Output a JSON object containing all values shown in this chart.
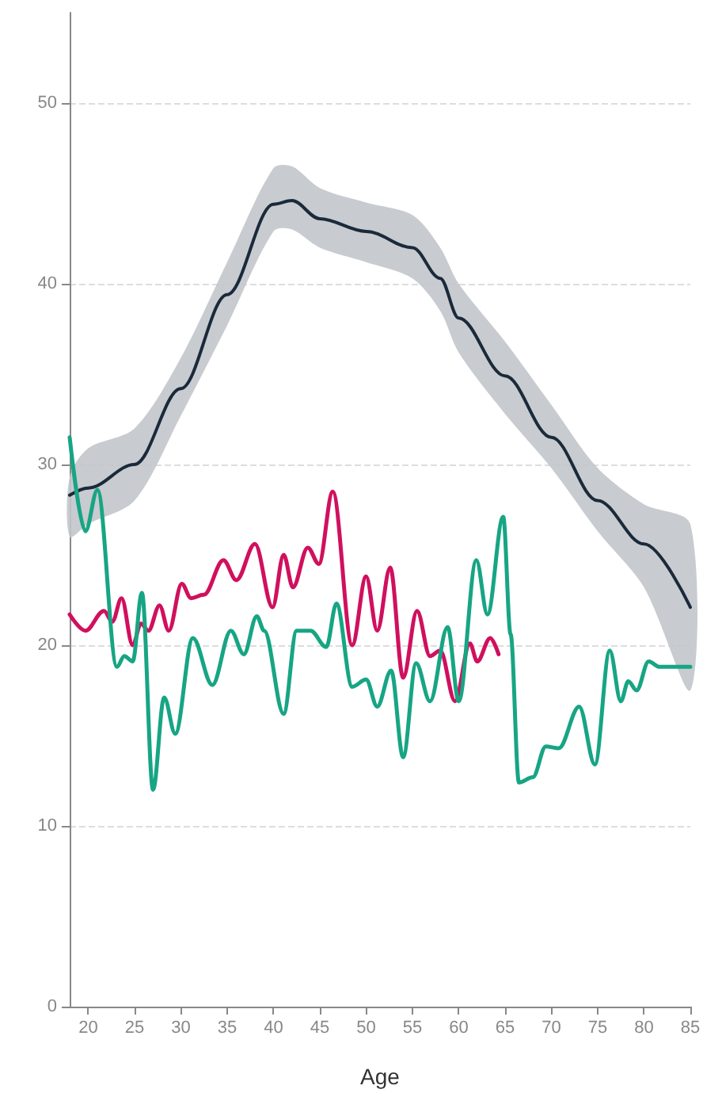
{
  "chart_data": {
    "type": "line",
    "xlabel": "Age",
    "xlim": [
      18,
      85
    ],
    "xticks": [
      20,
      25,
      30,
      35,
      40,
      45,
      50,
      55,
      60,
      65,
      70,
      75,
      80,
      85
    ],
    "ylim": [
      0,
      55
    ],
    "yticks": [
      0,
      10,
      20,
      30,
      40,
      50
    ],
    "grid": "y",
    "marker": "none",
    "line_style": "solid",
    "series": [
      {
        "color": "#1b2a3a",
        "x": [
          18,
          20,
          25,
          30,
          35,
          40,
          42,
          45,
          50,
          55,
          58,
          60,
          65,
          70,
          75,
          80,
          85
        ],
        "values": [
          28.3,
          28.7,
          30.0,
          34.2,
          39.4,
          44.4,
          44.6,
          43.6,
          42.9,
          42.0,
          40.3,
          38.1,
          34.9,
          31.5,
          28.0,
          25.6,
          22.1
        ],
        "lower": [
          26.0,
          26.7,
          28.0,
          32.7,
          37.7,
          42.9,
          43.0,
          42.0,
          41.2,
          40.3,
          38.5,
          36.2,
          32.8,
          29.8,
          26.3,
          23.2,
          17.5
        ],
        "upper": [
          29.3,
          30.9,
          32.0,
          35.9,
          41.2,
          46.4,
          46.5,
          45.3,
          44.5,
          43.8,
          42.0,
          40.0,
          36.8,
          33.3,
          29.8,
          27.8,
          26.7
        ]
      },
      {
        "color": "#d0105e",
        "x": [
          18,
          19.7,
          21.7,
          22.6,
          23.6,
          24.8,
          25.7,
          26.5,
          27.7,
          28.7,
          30.1,
          31.1,
          32.5,
          34.6,
          36,
          38,
          39.9,
          41.1,
          42.1,
          43.7,
          44.9,
          46.4,
          48.5,
          50,
          51.2,
          52.6,
          54,
          55.5,
          56.9,
          58,
          59.6,
          61.2,
          62,
          63.4,
          64.3
        ],
        "values": [
          21.7,
          20.8,
          21.9,
          21.3,
          22.6,
          20.0,
          21.2,
          20.8,
          22.2,
          20.8,
          23.4,
          22.6,
          22.8,
          24.7,
          23.6,
          25.6,
          22.1,
          25.0,
          23.2,
          25.4,
          24.5,
          28.5,
          20.0,
          23.8,
          20.8,
          24.3,
          18.2,
          21.9,
          19.4,
          19.7,
          16.9,
          20.1,
          19.1,
          20.4,
          19.5
        ]
      },
      {
        "color": "#17a584",
        "x": [
          18,
          19.7,
          21,
          23.1,
          23.9,
          24.8,
          25.8,
          27,
          28.2,
          29.4,
          31.3,
          33.4,
          35.4,
          36.8,
          38.2,
          39,
          41.1,
          42.5,
          44,
          45.7,
          46.8,
          48.5,
          50,
          51.2,
          52.7,
          54,
          55.4,
          56.9,
          58.8,
          60,
          61.9,
          63.1,
          64.8,
          65.6,
          66.5,
          68,
          69.4,
          70.8,
          73,
          74.7,
          76.3,
          77.5,
          78.3,
          79.2,
          80.5,
          81.7,
          85
        ],
        "values": [
          31.5,
          26.3,
          28.6,
          18.8,
          19.4,
          19.1,
          22.9,
          12.0,
          17.1,
          15.1,
          20.4,
          17.8,
          20.8,
          19.5,
          21.6,
          20.8,
          16.2,
          20.8,
          20.8,
          19.9,
          22.3,
          17.7,
          18.1,
          16.6,
          18.6,
          13.8,
          19.0,
          16.9,
          21.0,
          16.9,
          24.7,
          21.7,
          27.1,
          20.6,
          12.4,
          12.7,
          14.4,
          14.3,
          16.6,
          13.4,
          19.7,
          16.9,
          18.0,
          17.5,
          19.1,
          18.8,
          18.8
        ]
      }
    ]
  }
}
